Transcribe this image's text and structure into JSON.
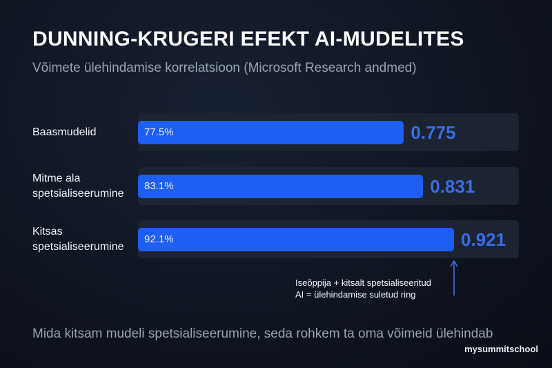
{
  "chart_data": {
    "type": "bar",
    "orientation": "horizontal",
    "title": "DUNNING-KRUGERI EFEKT AI-MUDELITES",
    "subtitle": "Võimete ülehindamise korrelatsioon (Microsoft Research andmed)",
    "categories": [
      "Baasmudelid",
      "Mitme ala spetsialiseerumine",
      "Kitsas spetsialiseerumine"
    ],
    "values": [
      0.775,
      0.831,
      0.921
    ],
    "value_labels": [
      "77.5%",
      "83.1%",
      "92.1%"
    ],
    "color": "#1f5ef2",
    "xlim": [
      0,
      1.11
    ],
    "annotation": {
      "lines": [
        "Iseõppija + kitsalt spetsialiseeritud",
        "AI = ülehindamise suletud ring"
      ],
      "target": 2
    },
    "footnote": "Mida kitsam mudeli spetsialiseerumine, seda rohkem ta oma võimeid ülehindab",
    "watermark": "mysummitschool"
  }
}
